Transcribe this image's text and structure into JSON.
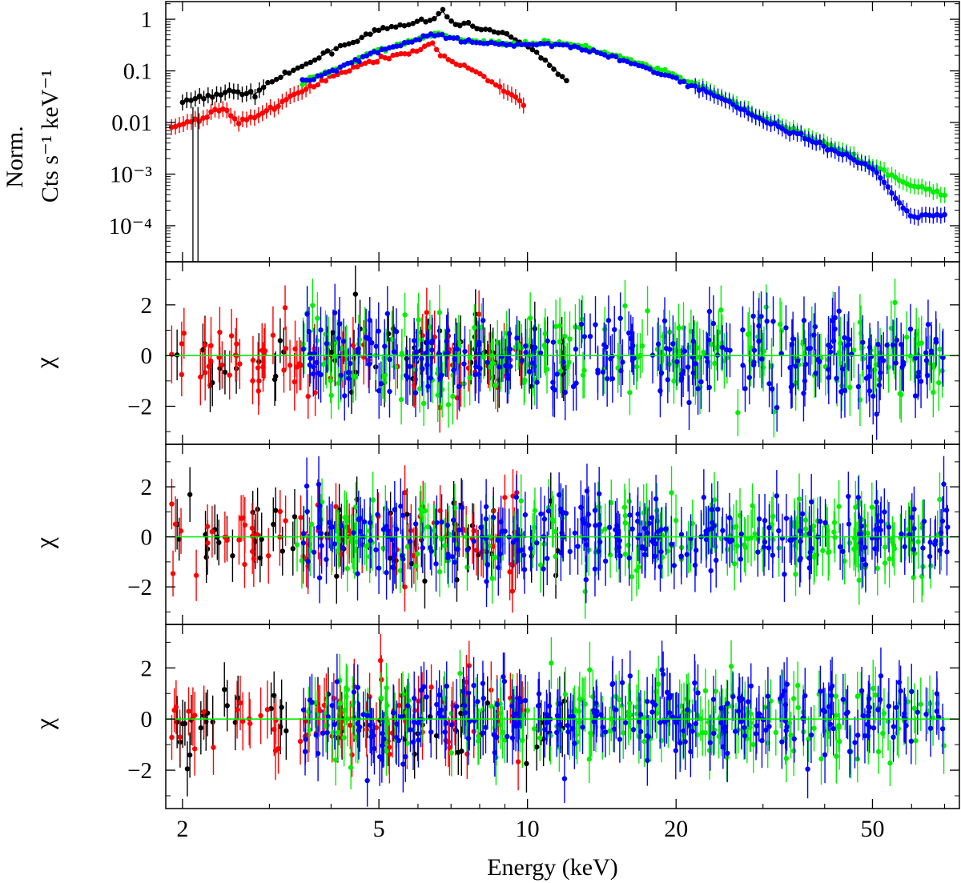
{
  "chart_data": [
    {
      "type": "scatter",
      "panel": "spectrum",
      "ylabel_line1": "Norm.",
      "ylabel_line2": "Cts s⁻¹ keV⁻¹",
      "yscale": "log",
      "ylim": [
        2e-05,
        2.2
      ],
      "yticks": [
        {
          "value": 1,
          "label": "1"
        },
        {
          "value": 0.1,
          "label": "0.1"
        },
        {
          "value": 0.01,
          "label": "0.01"
        },
        {
          "value": 0.001,
          "label": "10⁻³"
        },
        {
          "value": 0.0001,
          "label": "10⁻⁴"
        }
      ],
      "series": [
        {
          "name": "black",
          "color": "#000000",
          "x": [
            2.0,
            2.2,
            2.5,
            2.8,
            3.0,
            3.5,
            4.0,
            5.0,
            6.0,
            6.5,
            6.7,
            7.0,
            8.0,
            9.0,
            10.0,
            11.0,
            12.0
          ],
          "y": [
            0.025,
            0.03,
            0.04,
            0.035,
            0.06,
            0.12,
            0.25,
            0.6,
            0.9,
            1.0,
            1.5,
            0.9,
            0.7,
            0.5,
            0.3,
            0.15,
            0.06
          ]
        },
        {
          "name": "red",
          "color": "#ff0000",
          "x": [
            1.9,
            2.0,
            2.2,
            2.4,
            2.6,
            2.8,
            3.0,
            3.5,
            4.0,
            5.0,
            6.0,
            6.4,
            6.7,
            7.0,
            8.0,
            9.0,
            10.0
          ],
          "y": [
            0.008,
            0.009,
            0.012,
            0.02,
            0.01,
            0.013,
            0.018,
            0.04,
            0.08,
            0.17,
            0.25,
            0.35,
            0.2,
            0.15,
            0.09,
            0.04,
            0.02
          ]
        },
        {
          "name": "green",
          "color": "#00ee00",
          "x": [
            3.5,
            4.0,
            5.0,
            6.0,
            6.5,
            7.0,
            8.0,
            10.0,
            12.0,
            15.0,
            20.0,
            25.0,
            30.0,
            40.0,
            50.0,
            60.0,
            70.0
          ],
          "y": [
            0.06,
            0.1,
            0.25,
            0.4,
            0.55,
            0.45,
            0.35,
            0.35,
            0.35,
            0.2,
            0.08,
            0.03,
            0.012,
            0.004,
            0.0015,
            0.0006,
            0.0004
          ]
        },
        {
          "name": "blue",
          "color": "#0000ff",
          "x": [
            3.5,
            4.0,
            5.0,
            6.0,
            6.5,
            7.0,
            8.0,
            10.0,
            12.0,
            15.0,
            20.0,
            25.0,
            30.0,
            40.0,
            50.0,
            60.0,
            70.0
          ],
          "y": [
            0.06,
            0.1,
            0.25,
            0.4,
            0.5,
            0.42,
            0.33,
            0.33,
            0.33,
            0.18,
            0.07,
            0.028,
            0.011,
            0.0035,
            0.0013,
            0.00015,
            0.00016
          ]
        }
      ]
    },
    {
      "type": "scatter",
      "panel": "residuals-1",
      "ylabel": "χ",
      "ylim": [
        -3.5,
        3.7
      ],
      "yticks": [
        {
          "value": 2,
          "label": "2"
        },
        {
          "value": 0,
          "label": "0"
        },
        {
          "value": -2,
          "label": "−2"
        }
      ],
      "reference_line": 0
    },
    {
      "type": "scatter",
      "panel": "residuals-2",
      "ylabel": "χ",
      "ylim": [
        -3.5,
        3.7
      ],
      "yticks": [
        {
          "value": 2,
          "label": "2"
        },
        {
          "value": 0,
          "label": "0"
        },
        {
          "value": -2,
          "label": "−2"
        }
      ],
      "reference_line": 0
    },
    {
      "type": "scatter",
      "panel": "residuals-3",
      "ylabel": "χ",
      "ylim": [
        -3.5,
        3.7
      ],
      "yticks": [
        {
          "value": 2,
          "label": "2"
        },
        {
          "value": 0,
          "label": "0"
        },
        {
          "value": -2,
          "label": "−2"
        }
      ],
      "reference_line": 0
    }
  ],
  "xaxis": {
    "label": "Energy (keV)",
    "scale": "log",
    "xlim": [
      1.85,
      75
    ],
    "ticks": [
      {
        "value": 2,
        "label": "2"
      },
      {
        "value": 5,
        "label": "5"
      },
      {
        "value": 10,
        "label": "10"
      },
      {
        "value": 20,
        "label": "20"
      },
      {
        "value": 50,
        "label": "50"
      }
    ]
  }
}
